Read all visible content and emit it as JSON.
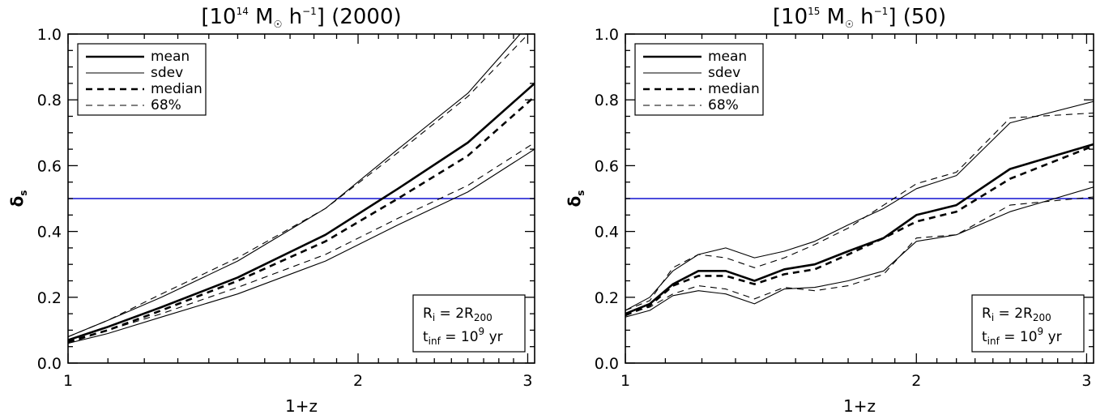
{
  "chart_data": [
    {
      "type": "line",
      "title": "[10¹⁴ M☉ h⁻¹] (2000)",
      "title_mass_exp": "14",
      "title_count": "(2000)",
      "xlabel": "1+z",
      "ylabel": "δs",
      "xscale": "log",
      "xlim": [
        1,
        3.05
      ],
      "ylim": [
        0,
        1.0
      ],
      "xticks": [
        1,
        2,
        3
      ],
      "yticks": [
        0.0,
        0.2,
        0.4,
        0.6,
        0.8,
        1.0
      ],
      "xtick_labels": [
        "1",
        "2",
        "3"
      ],
      "ytick_labels": [
        "0.0",
        "0.2",
        "0.4",
        "0.6",
        "0.8",
        "1.0"
      ],
      "hline": {
        "y": 0.5,
        "color": "#1010d0"
      },
      "legend": {
        "position": "top-left",
        "entries": [
          "mean",
          "sdev",
          "median",
          "68%"
        ]
      },
      "annotation": {
        "position": "bottom-right",
        "ri_label": "R",
        "ri_sub": "i",
        "ri_eq": " = 2R",
        "ri_sub2": "200",
        "t_label": "t",
        "t_sub": "inf",
        "t_eq": " = 10",
        "t_exp": "9",
        "t_unit": " yr"
      },
      "series": [
        {
          "name": "mean",
          "style": "solid-thick",
          "x": [
            1.0,
            1.1,
            1.25,
            1.5,
            1.85,
            2.2,
            2.6,
            3.05
          ],
          "y": [
            0.07,
            0.11,
            0.17,
            0.26,
            0.39,
            0.53,
            0.67,
            0.85
          ]
        },
        {
          "name": "sdev",
          "style": "solid-thin",
          "x": [
            1.0,
            1.1,
            1.25,
            1.5,
            1.85,
            2.2,
            2.6,
            3.05
          ],
          "y": [
            0.08,
            0.13,
            0.2,
            0.31,
            0.47,
            0.65,
            0.82,
            1.05
          ]
        },
        {
          "name": "sdev",
          "style": "solid-thin",
          "x": [
            1.0,
            1.1,
            1.25,
            1.5,
            1.85,
            2.2,
            2.6,
            3.05
          ],
          "y": [
            0.06,
            0.09,
            0.14,
            0.21,
            0.31,
            0.42,
            0.52,
            0.65
          ]
        },
        {
          "name": "median",
          "style": "dashed-thick",
          "x": [
            1.0,
            1.1,
            1.25,
            1.5,
            1.85,
            2.2,
            2.6,
            3.05
          ],
          "y": [
            0.065,
            0.1,
            0.16,
            0.25,
            0.37,
            0.5,
            0.63,
            0.81
          ]
        },
        {
          "name": "68%",
          "style": "dashed-thin",
          "x": [
            1.0,
            1.1,
            1.25,
            1.5,
            1.85,
            2.2,
            2.6,
            3.05
          ],
          "y": [
            0.08,
            0.13,
            0.21,
            0.32,
            0.47,
            0.64,
            0.81,
            1.02
          ]
        },
        {
          "name": "68%",
          "style": "dashed-thin",
          "x": [
            1.0,
            1.1,
            1.25,
            1.5,
            1.85,
            2.2,
            2.6,
            3.05
          ],
          "y": [
            0.06,
            0.1,
            0.15,
            0.23,
            0.33,
            0.44,
            0.54,
            0.67
          ]
        }
      ]
    },
    {
      "type": "line",
      "title": "[10¹⁵ M☉ h⁻¹] (50)",
      "title_mass_exp": "15",
      "title_count": "(50)",
      "xlabel": "1+z",
      "ylabel": "δs",
      "xscale": "log",
      "xlim": [
        1,
        3.05
      ],
      "ylim": [
        0,
        1.0
      ],
      "xticks": [
        1,
        2,
        3
      ],
      "yticks": [
        0.0,
        0.2,
        0.4,
        0.6,
        0.8,
        1.0
      ],
      "xtick_labels": [
        "1",
        "2",
        "3"
      ],
      "ytick_labels": [
        "0.0",
        "0.2",
        "0.4",
        "0.6",
        "0.8",
        "1.0"
      ],
      "hline": {
        "y": 0.5,
        "color": "#1010d0"
      },
      "legend": {
        "position": "top-left",
        "entries": [
          "mean",
          "sdev",
          "median",
          "68%"
        ]
      },
      "annotation": {
        "position": "bottom-right",
        "ri_label": "R",
        "ri_sub": "i",
        "ri_eq": " = 2R",
        "ri_sub2": "200",
        "t_label": "t",
        "t_sub": "inf",
        "t_eq": " = 10",
        "t_exp": "9",
        "t_unit": " yr"
      },
      "series": [
        {
          "name": "mean",
          "style": "solid-thick",
          "x": [
            1.0,
            1.06,
            1.12,
            1.19,
            1.27,
            1.36,
            1.46,
            1.57,
            1.7,
            1.85,
            2.0,
            2.2,
            2.5,
            3.05
          ],
          "y": [
            0.15,
            0.18,
            0.24,
            0.28,
            0.28,
            0.25,
            0.285,
            0.3,
            0.34,
            0.38,
            0.45,
            0.48,
            0.59,
            0.665
          ]
        },
        {
          "name": "sdev",
          "style": "solid-thin",
          "x": [
            1.0,
            1.06,
            1.12,
            1.19,
            1.27,
            1.36,
            1.46,
            1.57,
            1.7,
            1.85,
            2.0,
            2.2,
            2.5,
            3.05
          ],
          "y": [
            0.16,
            0.2,
            0.28,
            0.33,
            0.35,
            0.32,
            0.34,
            0.37,
            0.42,
            0.47,
            0.53,
            0.57,
            0.73,
            0.795
          ]
        },
        {
          "name": "sdev",
          "style": "solid-thin",
          "x": [
            1.0,
            1.06,
            1.12,
            1.19,
            1.27,
            1.36,
            1.46,
            1.57,
            1.7,
            1.85,
            2.0,
            2.2,
            2.5,
            3.05
          ],
          "y": [
            0.14,
            0.16,
            0.205,
            0.22,
            0.21,
            0.18,
            0.225,
            0.23,
            0.25,
            0.28,
            0.37,
            0.39,
            0.46,
            0.535
          ]
        },
        {
          "name": "median",
          "style": "dashed-thick",
          "x": [
            1.0,
            1.06,
            1.12,
            1.19,
            1.27,
            1.36,
            1.46,
            1.57,
            1.7,
            1.85,
            2.0,
            2.2,
            2.5,
            3.05
          ],
          "y": [
            0.145,
            0.175,
            0.235,
            0.265,
            0.265,
            0.24,
            0.27,
            0.285,
            0.33,
            0.38,
            0.43,
            0.46,
            0.56,
            0.66
          ]
        },
        {
          "name": "68%",
          "style": "dashed-thin",
          "x": [
            1.0,
            1.06,
            1.12,
            1.19,
            1.27,
            1.36,
            1.46,
            1.57,
            1.7,
            1.85,
            2.0,
            2.2,
            2.5,
            3.05
          ],
          "y": [
            0.16,
            0.19,
            0.29,
            0.33,
            0.32,
            0.29,
            0.32,
            0.36,
            0.41,
            0.48,
            0.545,
            0.58,
            0.745,
            0.76
          ]
        },
        {
          "name": "68%",
          "style": "dashed-thin",
          "x": [
            1.0,
            1.06,
            1.12,
            1.19,
            1.27,
            1.36,
            1.46,
            1.57,
            1.7,
            1.85,
            2.0,
            2.2,
            2.5,
            3.05
          ],
          "y": [
            0.15,
            0.17,
            0.21,
            0.235,
            0.225,
            0.195,
            0.23,
            0.22,
            0.235,
            0.27,
            0.38,
            0.39,
            0.48,
            0.505
          ]
        }
      ]
    }
  ]
}
